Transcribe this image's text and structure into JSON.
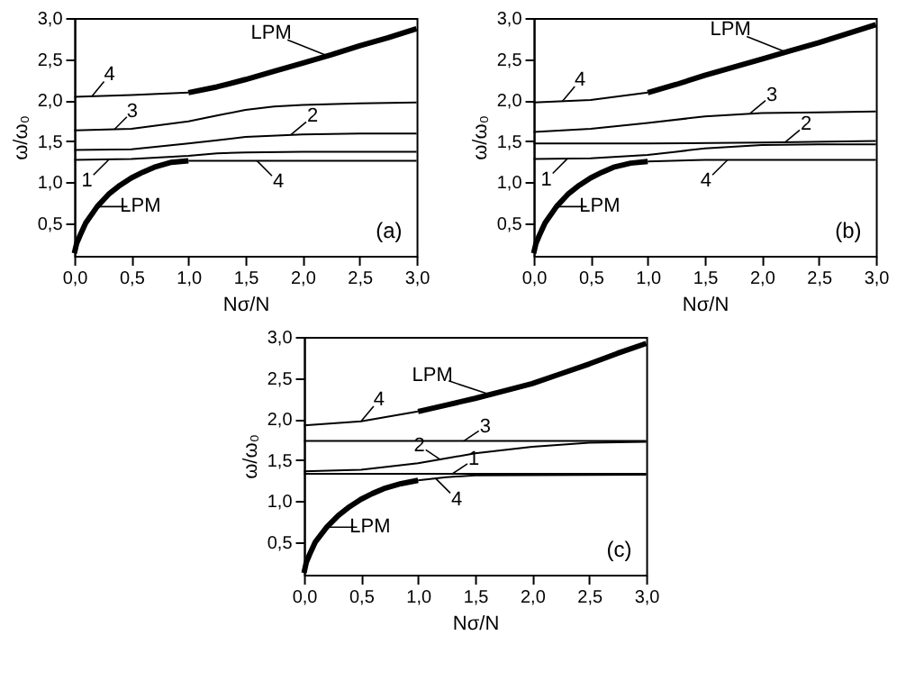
{
  "chart_data": [
    {
      "type": "line",
      "xlabel": "Nσ/N",
      "ylabel": "ω/ω₀",
      "xlim": [
        0,
        3
      ],
      "ylim": [
        0.1,
        3
      ],
      "xticks": [
        {
          "value": 0,
          "label": "0,0"
        },
        {
          "value": 0.5,
          "label": "0,5"
        },
        {
          "value": 1,
          "label": "1,0"
        },
        {
          "value": 1.5,
          "label": "1,5"
        },
        {
          "value": 2,
          "label": "2,0"
        },
        {
          "value": 2.5,
          "label": "2,5"
        },
        {
          "value": 3,
          "label": "3,0"
        }
      ],
      "yticks": [
        {
          "value": 0.5,
          "label": "0,5"
        },
        {
          "value": 1,
          "label": "1,0"
        },
        {
          "value": 1.5,
          "label": "1,5"
        },
        {
          "value": 2,
          "label": "2,0"
        },
        {
          "value": 2.5,
          "label": "2,5"
        },
        {
          "value": 3,
          "label": "3,0"
        }
      ],
      "series": [
        {
          "color": "#000000",
          "x": [
            0,
            0.5,
            1.0
          ],
          "values": [
            2.04,
            2.06,
            2.09
          ]
        },
        {
          "color": "#000000",
          "x": [
            1.0,
            1.25,
            1.5,
            1.75,
            2.0,
            2.25,
            2.5,
            2.75,
            3.0
          ],
          "values": [
            2.09,
            2.16,
            2.25,
            2.35,
            2.45,
            2.55,
            2.66,
            2.76,
            2.87
          ]
        },
        {
          "color": "#000000",
          "x": [
            0,
            0.5,
            1.0,
            1.25,
            1.5,
            1.75,
            2.0,
            2.5,
            3.0
          ],
          "values": [
            1.63,
            1.65,
            1.74,
            1.81,
            1.88,
            1.92,
            1.94,
            1.96,
            1.97
          ]
        },
        {
          "color": "#000000",
          "x": [
            0,
            0.5,
            1.0,
            1.25,
            1.5,
            2.0,
            2.5,
            3.0
          ],
          "values": [
            1.39,
            1.4,
            1.47,
            1.51,
            1.55,
            1.58,
            1.59,
            1.59
          ]
        },
        {
          "color": "#000000",
          "x": [
            0,
            0.5,
            1.0,
            1.25,
            1.5,
            2.0,
            3.0
          ],
          "values": [
            1.27,
            1.28,
            1.32,
            1.35,
            1.36,
            1.37,
            1.37
          ]
        },
        {
          "color": "#000000",
          "x": [
            0,
            0.02,
            0.05,
            0.1,
            0.2,
            0.3,
            0.4,
            0.5,
            0.6,
            0.7,
            0.85,
            1.0
          ],
          "values": [
            0.13,
            0.25,
            0.35,
            0.5,
            0.7,
            0.85,
            0.96,
            1.05,
            1.12,
            1.18,
            1.24,
            1.26
          ]
        },
        {
          "color": "#000000",
          "x": [
            1.0,
            2.0,
            3.0
          ],
          "values": [
            1.26,
            1.26,
            1.26
          ]
        }
      ],
      "annotations": [
        {
          "text": "LPM",
          "x": 2.2,
          "y": 2.55
        },
        {
          "text": "4",
          "x": 0.15,
          "y": 2.04
        },
        {
          "text": "3",
          "x": 0.35,
          "y": 1.64
        },
        {
          "text": "2",
          "x": 1.9,
          "y": 1.58
        },
        {
          "text": "1",
          "x": 0.3,
          "y": 1.27
        },
        {
          "text": "4",
          "x": 1.6,
          "y": 1.26
        },
        {
          "text": "LPM",
          "x": 0.2,
          "y": 0.7
        },
        "(a)"
      ]
    },
    {
      "type": "line",
      "xlabel": "Nσ/N",
      "ylabel": "ω/ω₀",
      "xlim": [
        0,
        3
      ],
      "ylim": [
        0.1,
        3
      ],
      "xticks": [
        {
          "value": 0,
          "label": "0,0"
        },
        {
          "value": 0.5,
          "label": "0,5"
        },
        {
          "value": 1,
          "label": "1,0"
        },
        {
          "value": 1.5,
          "label": "1,5"
        },
        {
          "value": 2,
          "label": "2,0"
        },
        {
          "value": 2.5,
          "label": "2,5"
        },
        {
          "value": 3,
          "label": "3,0"
        }
      ],
      "yticks": [
        {
          "value": 0.5,
          "label": "0,5"
        },
        {
          "value": 1,
          "label": "1,0"
        },
        {
          "value": 1.5,
          "label": "1,5"
        },
        {
          "value": 2,
          "label": "2,0"
        },
        {
          "value": 2.5,
          "label": "2,5"
        },
        {
          "value": 3,
          "label": "3,0"
        }
      ],
      "series": [
        {
          "color": "#000000",
          "x": [
            0,
            0.5,
            1.0
          ],
          "values": [
            1.97,
            2.0,
            2.09
          ]
        },
        {
          "color": "#000000",
          "x": [
            1.0,
            1.25,
            1.5,
            1.75,
            2.0,
            2.25,
            2.5,
            2.75,
            3.0
          ],
          "values": [
            2.09,
            2.19,
            2.3,
            2.4,
            2.5,
            2.6,
            2.7,
            2.81,
            2.92
          ]
        },
        {
          "color": "#000000",
          "x": [
            0,
            0.5,
            1.0,
            1.5,
            2.0,
            2.5,
            3.0
          ],
          "values": [
            1.61,
            1.65,
            1.72,
            1.8,
            1.84,
            1.85,
            1.86
          ]
        },
        {
          "color": "#000000",
          "x": [
            0,
            1.0,
            2.0,
            3.0
          ],
          "values": [
            1.47,
            1.47,
            1.48,
            1.5
          ]
        },
        {
          "color": "#000000",
          "x": [
            0,
            0.5,
            1.0,
            1.25,
            1.5,
            2.0,
            2.5,
            3.0
          ],
          "values": [
            1.28,
            1.29,
            1.33,
            1.37,
            1.41,
            1.45,
            1.46,
            1.46
          ]
        },
        {
          "color": "#000000",
          "x": [
            0,
            0.02,
            0.05,
            0.1,
            0.2,
            0.3,
            0.4,
            0.5,
            0.6,
            0.7,
            0.85,
            1.0
          ],
          "values": [
            0.13,
            0.25,
            0.35,
            0.5,
            0.7,
            0.85,
            0.96,
            1.05,
            1.12,
            1.18,
            1.23,
            1.25
          ]
        },
        {
          "color": "#000000",
          "x": [
            1.0,
            1.5,
            2.0,
            3.0
          ],
          "values": [
            1.25,
            1.27,
            1.27,
            1.27
          ]
        }
      ],
      "annotations": [
        {
          "text": "LPM",
          "x": 2.2,
          "y": 2.59
        },
        {
          "text": "4",
          "x": 0.25,
          "y": 1.98
        },
        {
          "text": "3",
          "x": 1.9,
          "y": 1.84
        },
        {
          "text": "2",
          "x": 2.2,
          "y": 1.48
        },
        {
          "text": "1",
          "x": 0.3,
          "y": 1.29
        },
        {
          "text": "4",
          "x": 1.7,
          "y": 1.27
        },
        {
          "text": "LPM",
          "x": 0.2,
          "y": 0.7
        },
        "(b)"
      ]
    },
    {
      "type": "line",
      "xlabel": "Nσ/N",
      "ylabel": "ω/ω₀",
      "xlim": [
        0,
        3
      ],
      "ylim": [
        0.1,
        3
      ],
      "xticks": [
        {
          "value": 0,
          "label": "0,0"
        },
        {
          "value": 0.5,
          "label": "0,5"
        },
        {
          "value": 1,
          "label": "1,0"
        },
        {
          "value": 1.5,
          "label": "1,5"
        },
        {
          "value": 2,
          "label": "2,0"
        },
        {
          "value": 2.5,
          "label": "2,5"
        },
        {
          "value": 3,
          "label": "3,0"
        }
      ],
      "yticks": [
        {
          "value": 0.5,
          "label": "0,5"
        },
        {
          "value": 1,
          "label": "1,0"
        },
        {
          "value": 1.5,
          "label": "1,5"
        },
        {
          "value": 2,
          "label": "2,0"
        },
        {
          "value": 2.5,
          "label": "2,5"
        },
        {
          "value": 3,
          "label": "3,0"
        }
      ],
      "series": [
        {
          "color": "#000000",
          "x": [
            0,
            0.5,
            1.0
          ],
          "values": [
            1.92,
            1.97,
            2.09
          ]
        },
        {
          "color": "#000000",
          "x": [
            1.0,
            1.25,
            1.5,
            1.75,
            2.0,
            2.25,
            2.5,
            2.75,
            3.0
          ],
          "values": [
            2.09,
            2.17,
            2.25,
            2.34,
            2.43,
            2.55,
            2.67,
            2.8,
            2.92
          ]
        },
        {
          "color": "#000000",
          "x": [
            0,
            3.0
          ],
          "values": [
            1.73,
            1.73
          ]
        },
        {
          "color": "#000000",
          "x": [
            0,
            0.5,
            1.0,
            1.25,
            1.5,
            2.0,
            2.5,
            3.0
          ],
          "values": [
            1.36,
            1.38,
            1.46,
            1.52,
            1.58,
            1.66,
            1.71,
            1.72
          ]
        },
        {
          "color": "#000000",
          "x": [
            0,
            3.0
          ],
          "values": [
            1.33,
            1.33
          ]
        },
        {
          "color": "#000000",
          "x": [
            0,
            0.02,
            0.05,
            0.1,
            0.2,
            0.3,
            0.4,
            0.5,
            0.6,
            0.7,
            0.85,
            1.0
          ],
          "values": [
            0.12,
            0.25,
            0.35,
            0.5,
            0.68,
            0.82,
            0.93,
            1.02,
            1.09,
            1.15,
            1.21,
            1.25
          ]
        },
        {
          "color": "#000000",
          "x": [
            1.0,
            1.25,
            1.5,
            3.0
          ],
          "values": [
            1.25,
            1.29,
            1.31,
            1.32
          ]
        }
      ],
      "annotations": [
        {
          "text": "LPM",
          "x": 1.6,
          "y": 2.31
        },
        {
          "text": "4",
          "x": 0.5,
          "y": 1.97
        },
        {
          "text": "3",
          "x": 1.4,
          "y": 1.73
        },
        {
          "text": "2",
          "x": 1.2,
          "y": 1.5
        },
        {
          "text": "1",
          "x": 1.3,
          "y": 1.33
        },
        {
          "text": "4",
          "x": 1.15,
          "y": 1.28
        },
        {
          "text": "LPM",
          "x": 0.2,
          "y": 0.68
        },
        "(c)"
      ]
    }
  ]
}
